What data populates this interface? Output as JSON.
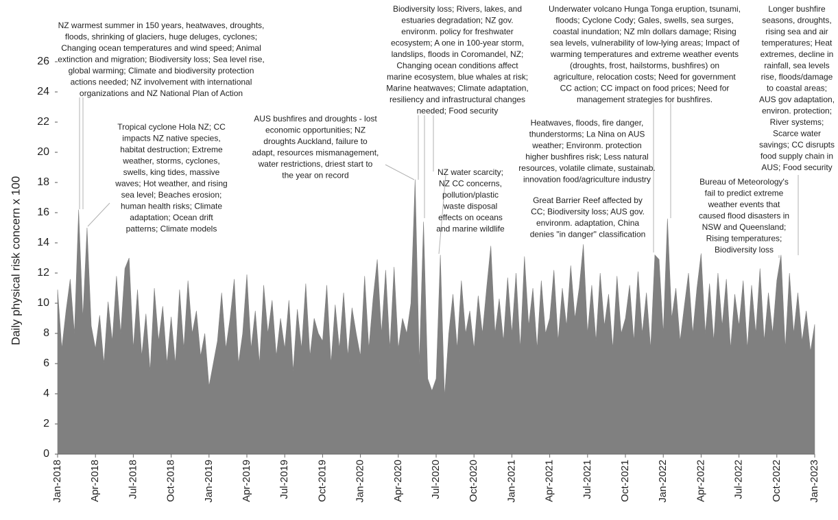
{
  "chart_data": {
    "type": "area",
    "y_label": "Daily physical risk concern x 100",
    "color": "#808080",
    "ylim": [
      0,
      27
    ],
    "yticks": [
      0,
      2,
      4,
      6,
      8,
      10,
      12,
      14,
      16,
      18,
      20,
      22,
      24,
      26
    ],
    "xticks": [
      "Jan-2018",
      "Apr-2018",
      "Jul-2018",
      "Oct-2018",
      "Jan-2019",
      "Apr-2019",
      "Jul-2019",
      "Oct-2019",
      "Jan-2020",
      "Apr-2020",
      "Jul-2020",
      "Oct-2020",
      "Jan-2021",
      "Apr-2021",
      "Jul-2021",
      "Oct-2021",
      "Jan-2022",
      "Apr-2022",
      "Jul-2022",
      "Oct-2022",
      "Jan-2023"
    ],
    "values": [
      10.9,
      7,
      9.5,
      11.6,
      8,
      16.2,
      9,
      15.0,
      8.5,
      7,
      9.2,
      6,
      10.1,
      7.5,
      11.8,
      8,
      12.3,
      13,
      7,
      10.9,
      6.5,
      9.3,
      5.5,
      11,
      7.5,
      9.8,
      6,
      9.1,
      6,
      10.9,
      7,
      11.5,
      8,
      9.5,
      6.5,
      8,
      4.5,
      6,
      7.5,
      10.7,
      7,
      9,
      11.6,
      6,
      8,
      11.9,
      7,
      9.5,
      6,
      11.2,
      8,
      10.2,
      6.5,
      9,
      7,
      10.2,
      5.5,
      9.6,
      7,
      11.3,
      6.5,
      9,
      8,
      7.5,
      11.2,
      6,
      9.9,
      7,
      10.7,
      6.5,
      9.7,
      8,
      6.5,
      11.8,
      7,
      10.3,
      12.9,
      8,
      12.2,
      7,
      12.4,
      7,
      9,
      8,
      10,
      18.2,
      6,
      15.4,
      5,
      4.2,
      5,
      13.2,
      3.8,
      8,
      10.6,
      7,
      11.5,
      8,
      9.5,
      7,
      10.5,
      8,
      11,
      13.8,
      8,
      10.3,
      7.5,
      11.7,
      8,
      12,
      7,
      13.1,
      8.5,
      11,
      7,
      11.5,
      8,
      9,
      12.2,
      7.5,
      11,
      8.5,
      12.5,
      9,
      11,
      13.9,
      8,
      11.2,
      7.5,
      12,
      8.5,
      10.6,
      7,
      11.8,
      8,
      9,
      11.2,
      7.5,
      12.1,
      8,
      10.7,
      7,
      13.2,
      12.9,
      8,
      15.6,
      9,
      11,
      7.5,
      9.8,
      12,
      8,
      11,
      13.3,
      8,
      11.3,
      7.5,
      12,
      8.5,
      11.6,
      7,
      10.6,
      8.5,
      11.5,
      7,
      11.2,
      8,
      12.3,
      7.5,
      10.7,
      8,
      11.5,
      13.2,
      7,
      12,
      8,
      10.7,
      7.5,
      9.5,
      6.8,
      8.6
    ],
    "annotations": [
      {
        "lines": [
          "NZ warmest summer in 150 years, heatwaves, droughts,",
          "floods, shrinking of glaciers, huge deluges, cyclones;",
          "Changing ocean temperatures and wind speed; Animal",
          "extinction and migration; Biodiversity loss; Sea level rise,",
          "global warming; Climate and biodiversity protection",
          "actions needed; NZ involvement with international",
          "organizations and NZ National Plan of Action"
        ]
      },
      {
        "lines": [
          "Tropical cyclone Hola NZ; CC",
          "impacts NZ native species,",
          "habitat destruction; Extreme",
          "weather, storms, cyclones,",
          "swells, king tides, massive",
          "waves; Hot weather, and rising",
          "sea level; Beaches erosion;",
          "human health risks; Climate",
          "adaptation; Ocean drift",
          "patterns; Climate models"
        ]
      },
      {
        "lines": [
          "AUS bushfires and droughts - lost",
          "economic opportunities; NZ",
          "droughts Auckland, failure to",
          "adapt, resources mismanagement,",
          "water restrictions, driest start to",
          "the year on record"
        ]
      },
      {
        "lines": [
          "Biodiversity loss; Rivers, lakes, and",
          "estuaries degradation; NZ gov.",
          "environm. policy for freshwater",
          "ecosystem; A one in 100-year storm,",
          "landslips, floods in Coromandel, NZ;",
          "Changing ocean conditions affect",
          "marine ecosystem, blue whales at risk;",
          "Marine heatwaves; Climate adaptation,",
          "resiliency and infrastructural changes",
          "needed; Food security"
        ]
      },
      {
        "lines": [
          "NZ water scarcity;",
          "NZ CC concerns,",
          "pollution/plastic",
          "waste disposal",
          "effects on oceans",
          "and marine wildlife"
        ]
      },
      {
        "lines": [
          "Underwater volcano Hunga Tonga eruption, tsunami,",
          "floods; Cyclone Cody; Gales, swells, sea surges,",
          "coastal inundation; NZ mln dollars damage; Rising",
          "sea levels, vulnerability of low-lying areas; Impact of",
          "warming temperatures and extreme weather events",
          "(droughts, frost, hailstorms, bushfires) on",
          "agriculture, relocation costs; Need for government",
          "CC action; CC impact on food prices; Need for",
          "management strategies for bushfires."
        ]
      },
      {
        "lines": [
          "Heatwaves, floods, fire danger,",
          "thunderstorms; La Nina on AUS",
          "weather; Environm. protection",
          "higher bushfires risk; Less natural",
          "resources, volatile climate, sustainab.",
          "innovation food/agriculture industry"
        ]
      },
      {
        "lines": [
          "Great Barrier Reef affected by",
          "CC; Biodiversity loss; AUS gov.",
          "environm. adaptation, China",
          "denies \"in danger\" classification"
        ]
      },
      {
        "lines": [
          "Bureau of Meteorology's",
          "fail to predict extreme",
          "weather events that",
          "caused flood disasters in",
          "NSW and Queensland;",
          "Rising temperatures;",
          "Biodiversity loss"
        ]
      },
      {
        "lines": [
          "Longer bushfire",
          "seasons, droughts,",
          "rising sea and air",
          "temperatures; Heat",
          "extremes, decline in",
          "rainfall, sea levels",
          "rise, floods/damage",
          "to coastal areas;",
          "AUS gov adaptation,",
          "environ. protection;",
          "River systems;",
          "Scarce water",
          "savings; CC disrupts",
          "food supply chain in",
          "AUS; Food security"
        ]
      }
    ]
  }
}
